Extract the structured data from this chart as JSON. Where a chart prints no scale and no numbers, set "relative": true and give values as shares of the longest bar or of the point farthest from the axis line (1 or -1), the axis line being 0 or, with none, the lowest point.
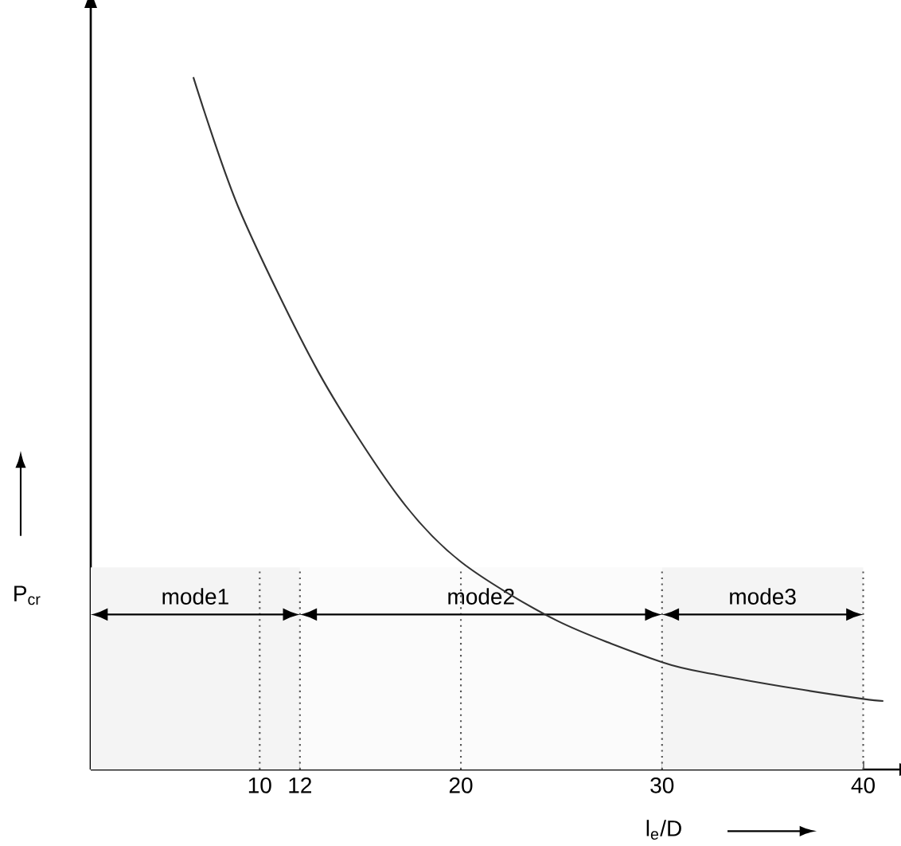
{
  "chart_data": {
    "type": "line",
    "relative": true,
    "xlabel": "l$_{e}$/D",
    "ylabel": "P$_{cr}$",
    "x": [
      6.7,
      8.97,
      12.92,
      16.88,
      20,
      24.78,
      30,
      32.7,
      36.6,
      40,
      41
    ],
    "values": [
      1,
      0.81,
      0.574,
      0.395,
      0.3,
      0.215,
      0.155,
      0.137,
      0.117,
      0.102,
      0.099
    ],
    "color": "#333333",
    "xlim": [
      1.6,
      41.8
    ],
    "xticks": [
      10,
      12,
      20,
      30,
      40
    ],
    "ref_lines": [
      {
        "axis": "x",
        "value": 10,
        "line_style": "dotted",
        "color": "#555555"
      },
      {
        "axis": "x",
        "value": 12,
        "line_style": "dotted",
        "color": "#555555"
      },
      {
        "axis": "x",
        "value": 20,
        "line_style": "dotted",
        "color": "#555555"
      },
      {
        "axis": "x",
        "value": 30,
        "line_style": "dotted",
        "color": "#555555"
      },
      {
        "axis": "x",
        "value": 40,
        "line_style": "dotted",
        "color": "#555555"
      }
    ],
    "bands": [
      {
        "axis": "x",
        "from": 1.6,
        "to": 12,
        "label": "mode1",
        "color": "#f4f4f4"
      },
      {
        "axis": "x",
        "from": 12,
        "to": 30,
        "label": "mode2",
        "color": "#fbfbfb"
      },
      {
        "axis": "x",
        "from": 30,
        "to": 40,
        "label": "mode3",
        "color": "#f4f4f4"
      }
    ],
    "grid": false,
    "marker": "none",
    "line_style": "solid"
  }
}
